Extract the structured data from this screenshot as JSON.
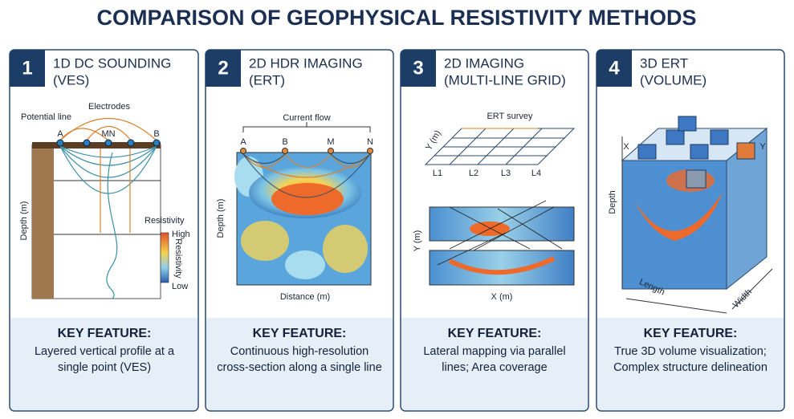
{
  "title": "COMPARISON OF GEOPHYSICAL RESISTIVITY METHODS",
  "panels": [
    {
      "number": "1",
      "heading": [
        "1D DC SOUNDING",
        "(VES)"
      ],
      "labels": [
        "Electrodes",
        "Potential line",
        "A",
        "MN",
        "B",
        "Depth (m)",
        "Resistivity",
        "High",
        "Resistivity",
        "Low"
      ],
      "key_feature": {
        "heading": "KEY FEATURE:",
        "text": [
          "Layered vertical profile at a",
          "single point (VES)"
        ]
      }
    },
    {
      "number": "2",
      "heading": [
        "2D HDR IMAGING",
        "(ERT)"
      ],
      "labels": [
        "Current flow",
        "A",
        "B",
        "M",
        "N",
        "Depth (m)",
        "Distance (m)"
      ],
      "key_feature": {
        "heading": "KEY FEATURE:",
        "text": [
          "Continuous high-resolution",
          "cross-section along a single line"
        ]
      }
    },
    {
      "number": "3",
      "heading": [
        "2D IMAGING",
        "(MULTI-LINE GRID)"
      ],
      "labels": [
        "ERT survey",
        "Y (m)",
        "L1",
        "L2",
        "L3",
        "L4",
        "Y (m)",
        "X (m)"
      ],
      "key_feature": {
        "heading": "KEY FEATURE:",
        "text": [
          "Lateral mapping via parallel",
          "lines; Area coverage"
        ]
      }
    },
    {
      "number": "4",
      "heading": [
        "3D ERT",
        "(VOLUME)"
      ],
      "labels": [
        "X",
        "Y",
        "Depth",
        "Length",
        "Width"
      ],
      "key_feature": {
        "heading": "KEY FEATURE:",
        "text": [
          "True 3D volume visualization;",
          "Complex structure delineation"
        ]
      }
    }
  ]
}
